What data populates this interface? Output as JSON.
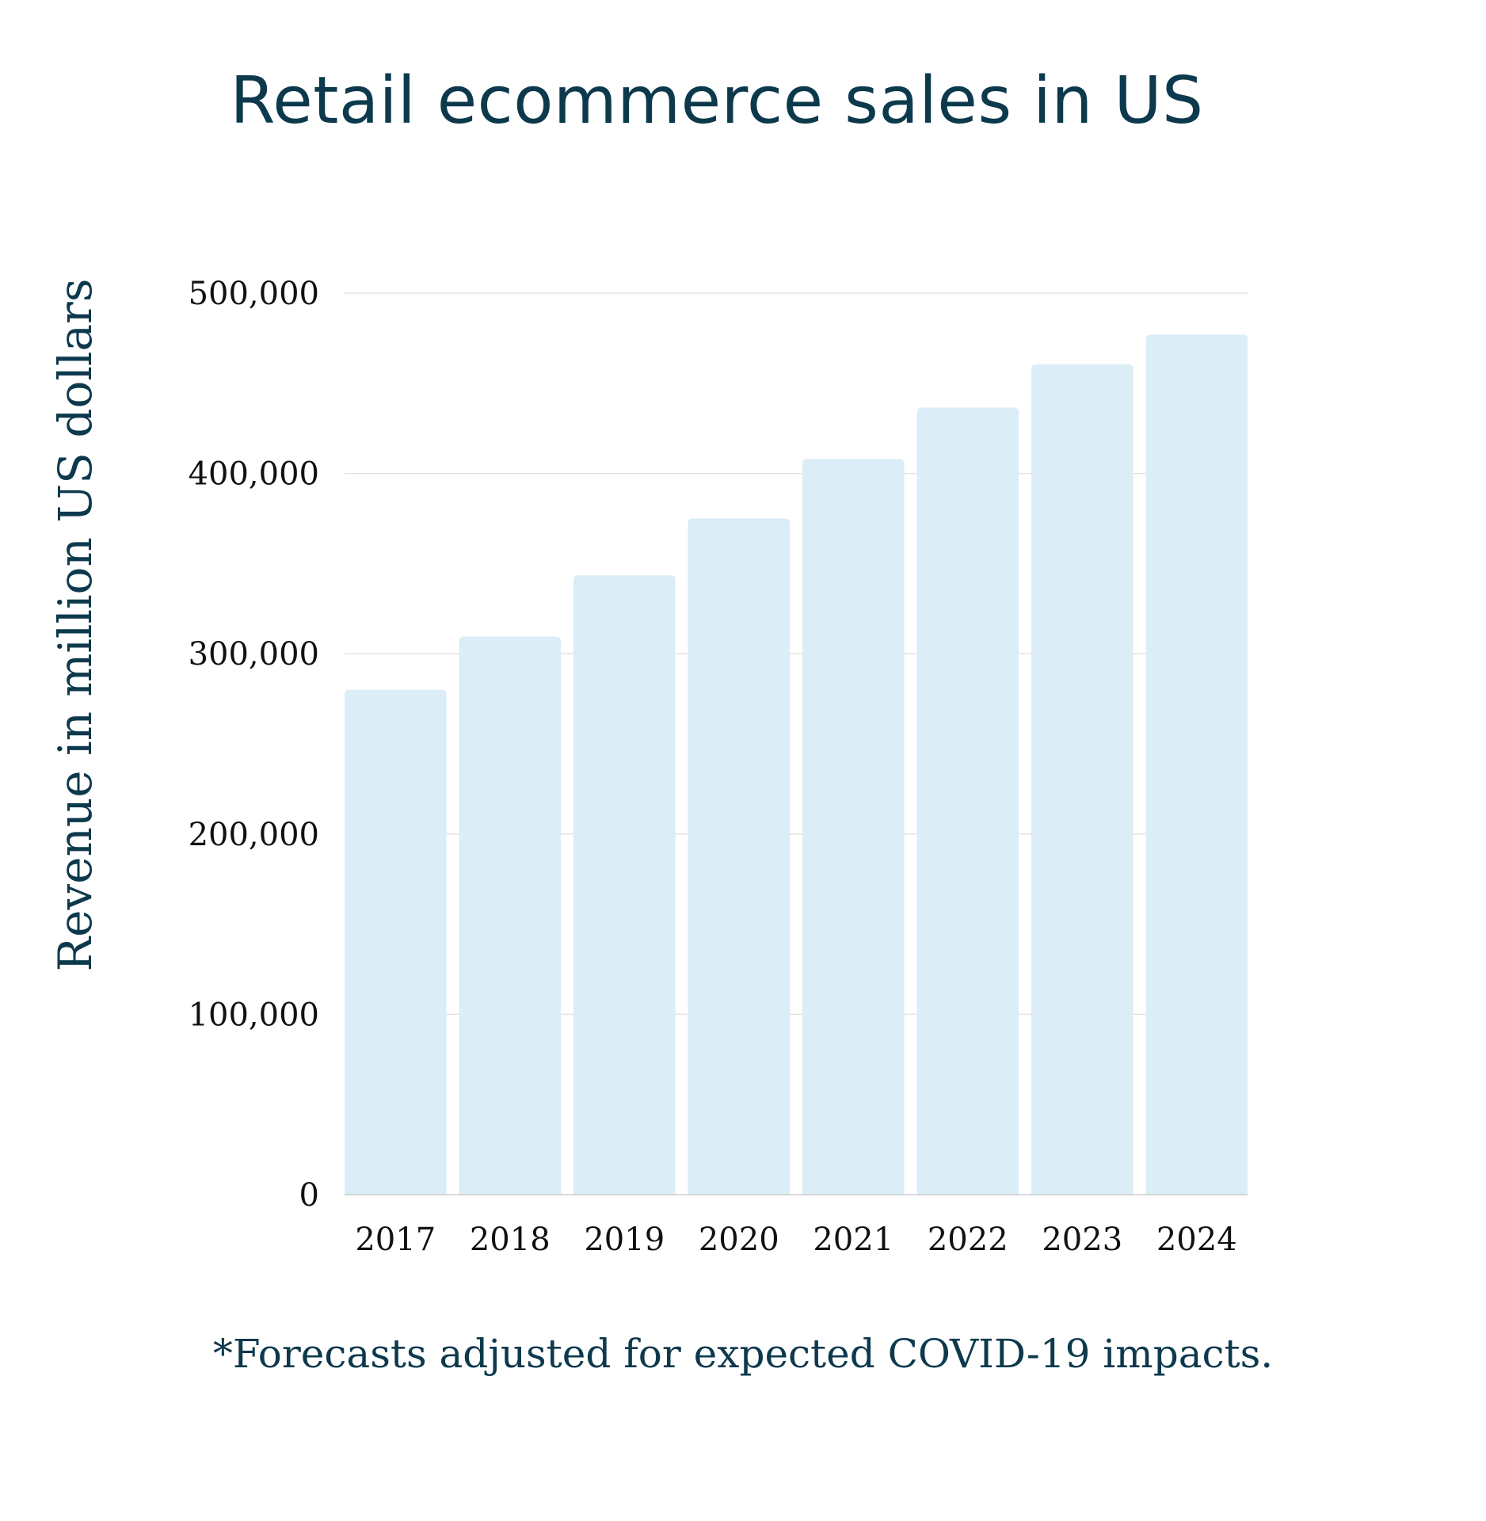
{
  "chart_data": {
    "type": "bar",
    "title": "Retail ecommerce sales in US",
    "xlabel": "",
    "ylabel": "Revenue in million US dollars",
    "categories": [
      "2017",
      "2018",
      "2019",
      "2020",
      "2021",
      "2022",
      "2023",
      "2024"
    ],
    "values": [
      280000,
      309500,
      343500,
      375000,
      408000,
      436500,
      460500,
      477000
    ],
    "ylim": [
      0,
      500000
    ],
    "yticks": [
      0,
      100000,
      200000,
      300000,
      400000,
      500000
    ],
    "ytick_labels": [
      "0",
      "100,000",
      "200,000",
      "300,000",
      "400,000",
      "500,000"
    ],
    "grid": true,
    "legend": "none",
    "footnote": "*Forecasts adjusted for expected COVID-19 impacts."
  },
  "colors": {
    "bar": "#dbedf6",
    "title": "#0d394d",
    "grid": "#e3e3e3",
    "axis": "#cccccc",
    "tick_text": "#111111"
  }
}
